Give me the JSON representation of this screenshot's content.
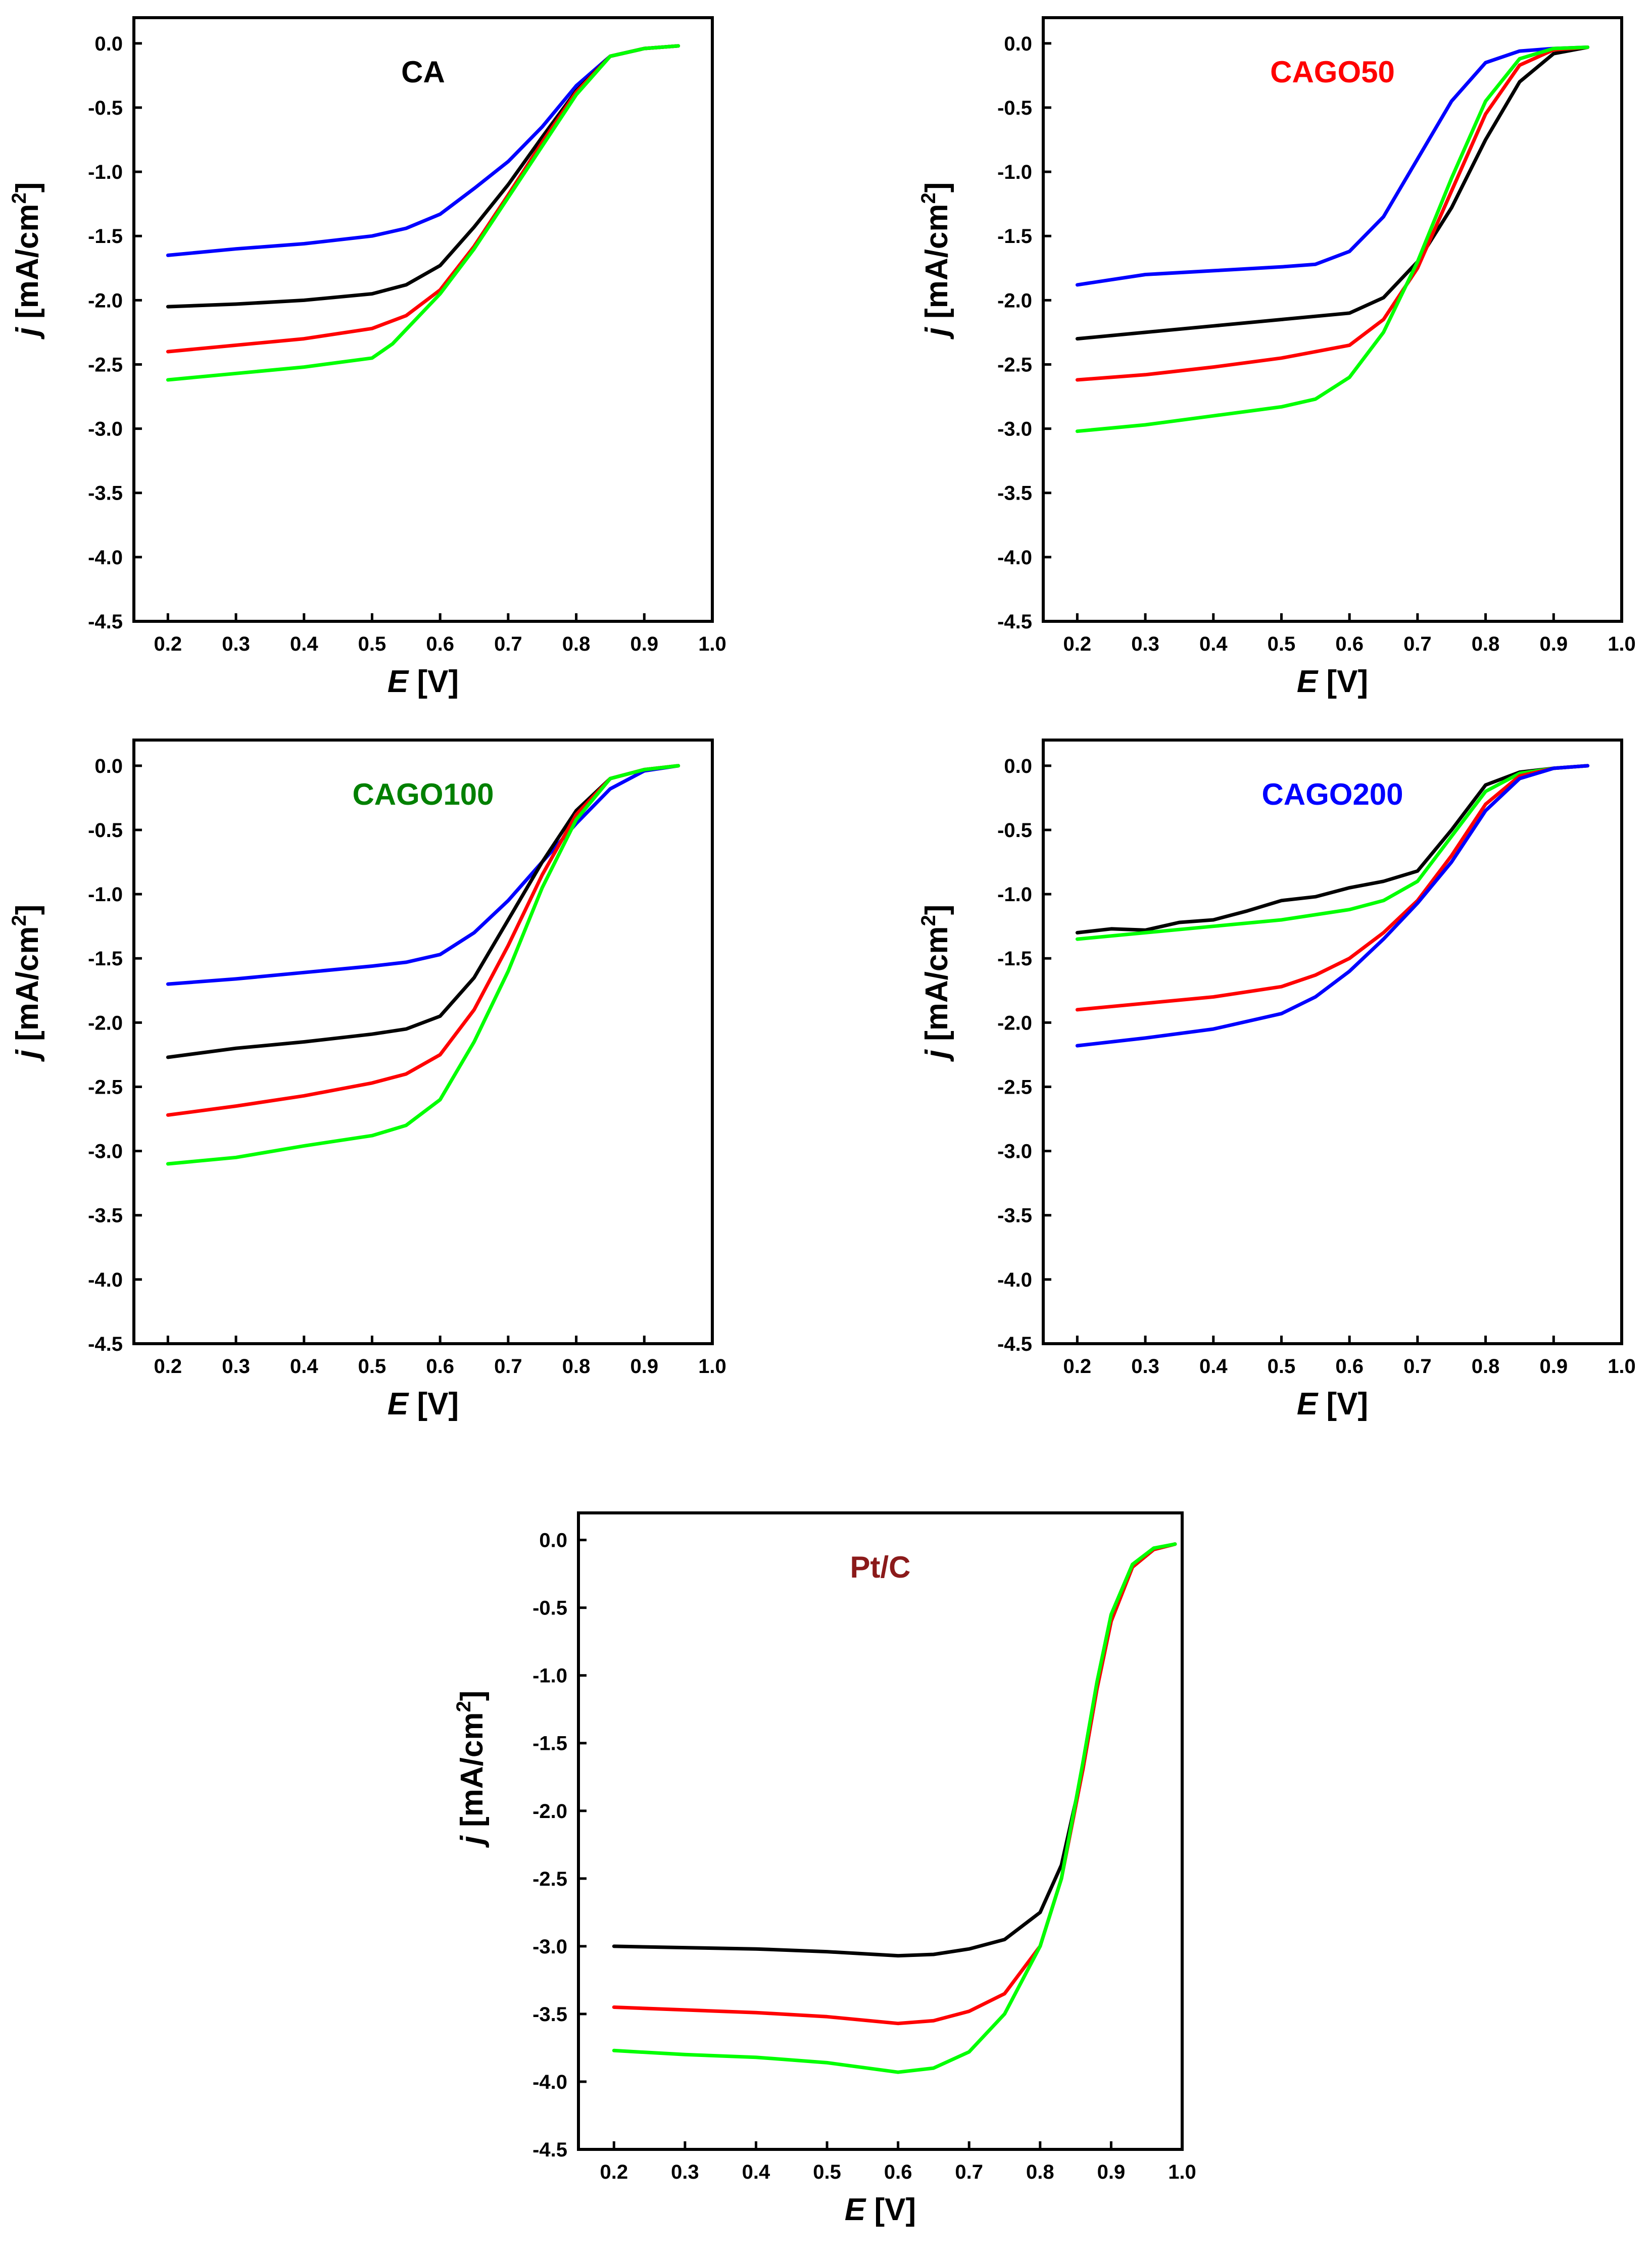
{
  "chart_data": [
    {
      "type": "line",
      "title": "CA",
      "title_color": "#000000",
      "xlabel_italic": "E",
      "xlabel_unit": "[V]",
      "ylabel_italic": "j",
      "ylabel_unit": "[mA/cm",
      "ylabel_sup": "2",
      "ylabel_close": "]",
      "xlim": [
        0.15,
        1.0
      ],
      "ylim": [
        -4.5,
        0.2
      ],
      "xticks": [
        "0.2",
        "0.3",
        "0.4",
        "0.5",
        "0.6",
        "0.7",
        "0.8",
        "0.9",
        "1.0"
      ],
      "yticks": [
        "0.0",
        "-0.5",
        "-1.0",
        "-1.5",
        "-2.0",
        "-2.5",
        "-3.0",
        "-3.5",
        "-4.0",
        "-4.5"
      ],
      "series": [
        {
          "color": "#0000ff",
          "x": [
            0.2,
            0.3,
            0.4,
            0.5,
            0.55,
            0.6,
            0.65,
            0.7,
            0.75,
            0.8,
            0.85,
            0.9,
            0.95
          ],
          "y": [
            -1.65,
            -1.6,
            -1.56,
            -1.5,
            -1.44,
            -1.33,
            -1.13,
            -0.92,
            -0.65,
            -0.33,
            -0.1,
            -0.04,
            -0.02
          ]
        },
        {
          "color": "#000000",
          "x": [
            0.2,
            0.3,
            0.4,
            0.5,
            0.55,
            0.6,
            0.65,
            0.7,
            0.75,
            0.8,
            0.85,
            0.9,
            0.95
          ],
          "y": [
            -2.05,
            -2.03,
            -2.0,
            -1.95,
            -1.88,
            -1.73,
            -1.43,
            -1.1,
            -0.73,
            -0.37,
            -0.1,
            -0.04,
            -0.02
          ]
        },
        {
          "color": "#ff0000",
          "x": [
            0.2,
            0.3,
            0.4,
            0.5,
            0.55,
            0.6,
            0.65,
            0.7,
            0.75,
            0.8,
            0.85,
            0.9,
            0.95
          ],
          "y": [
            -2.4,
            -2.35,
            -2.3,
            -2.22,
            -2.12,
            -1.92,
            -1.58,
            -1.18,
            -0.77,
            -0.38,
            -0.1,
            -0.04,
            -0.02
          ]
        },
        {
          "color": "#00ff00",
          "x": [
            0.2,
            0.3,
            0.4,
            0.5,
            0.53,
            0.6,
            0.65,
            0.7,
            0.75,
            0.8,
            0.85,
            0.9,
            0.95
          ],
          "y": [
            -2.62,
            -2.57,
            -2.52,
            -2.45,
            -2.34,
            -1.95,
            -1.6,
            -1.2,
            -0.8,
            -0.4,
            -0.1,
            -0.04,
            -0.02
          ]
        }
      ]
    },
    {
      "type": "line",
      "title": "CAGO50",
      "title_color": "#ff0000",
      "xlabel_italic": "E",
      "xlabel_unit": "[V]",
      "ylabel_italic": "j",
      "ylabel_unit": "[mA/cm",
      "ylabel_sup": "2",
      "ylabel_close": "]",
      "xlim": [
        0.15,
        1.0
      ],
      "ylim": [
        -4.5,
        0.2
      ],
      "xticks": [
        "0.2",
        "0.3",
        "0.4",
        "0.5",
        "0.6",
        "0.7",
        "0.8",
        "0.9",
        "1.0"
      ],
      "yticks": [
        "0.0",
        "-0.5",
        "-1.0",
        "-1.5",
        "-2.0",
        "-2.5",
        "-3.0",
        "-3.5",
        "-4.0",
        "-4.5"
      ],
      "series": [
        {
          "color": "#0000ff",
          "x": [
            0.2,
            0.3,
            0.4,
            0.5,
            0.55,
            0.6,
            0.65,
            0.7,
            0.75,
            0.8,
            0.85,
            0.9,
            0.95
          ],
          "y": [
            -1.88,
            -1.8,
            -1.77,
            -1.74,
            -1.72,
            -1.62,
            -1.35,
            -0.9,
            -0.45,
            -0.15,
            -0.06,
            -0.04,
            -0.03
          ]
        },
        {
          "color": "#000000",
          "x": [
            0.2,
            0.3,
            0.4,
            0.5,
            0.6,
            0.65,
            0.7,
            0.75,
            0.8,
            0.85,
            0.9,
            0.95
          ],
          "y": [
            -2.3,
            -2.25,
            -2.2,
            -2.15,
            -2.1,
            -1.98,
            -1.7,
            -1.28,
            -0.75,
            -0.3,
            -0.08,
            -0.03
          ]
        },
        {
          "color": "#ff0000",
          "x": [
            0.2,
            0.3,
            0.4,
            0.5,
            0.6,
            0.65,
            0.7,
            0.75,
            0.8,
            0.85,
            0.9,
            0.95
          ],
          "y": [
            -2.62,
            -2.58,
            -2.52,
            -2.45,
            -2.35,
            -2.15,
            -1.75,
            -1.15,
            -0.55,
            -0.17,
            -0.05,
            -0.03
          ]
        },
        {
          "color": "#00ff00",
          "x": [
            0.2,
            0.3,
            0.4,
            0.5,
            0.55,
            0.6,
            0.65,
            0.7,
            0.75,
            0.8,
            0.85,
            0.9,
            0.95
          ],
          "y": [
            -3.02,
            -2.97,
            -2.9,
            -2.83,
            -2.77,
            -2.6,
            -2.25,
            -1.7,
            -1.05,
            -0.45,
            -0.12,
            -0.04,
            -0.03
          ]
        }
      ]
    },
    {
      "type": "line",
      "title": "CAGO100",
      "title_color": "#008000",
      "xlabel_italic": "E",
      "xlabel_unit": "[V]",
      "ylabel_italic": "j",
      "ylabel_unit": "[mA/cm",
      "ylabel_sup": "2",
      "ylabel_close": "]",
      "xlim": [
        0.15,
        1.0
      ],
      "ylim": [
        -4.5,
        0.2
      ],
      "xticks": [
        "0.2",
        "0.3",
        "0.4",
        "0.5",
        "0.6",
        "0.7",
        "0.8",
        "0.9",
        "1.0"
      ],
      "yticks": [
        "0.0",
        "-0.5",
        "-1.0",
        "-1.5",
        "-2.0",
        "-2.5",
        "-3.0",
        "-3.5",
        "-4.0",
        "-4.5"
      ],
      "series": [
        {
          "color": "#0000ff",
          "x": [
            0.2,
            0.3,
            0.4,
            0.5,
            0.55,
            0.6,
            0.65,
            0.7,
            0.75,
            0.8,
            0.85,
            0.9,
            0.95
          ],
          "y": [
            -1.7,
            -1.66,
            -1.61,
            -1.56,
            -1.53,
            -1.47,
            -1.3,
            -1.05,
            -0.75,
            -0.45,
            -0.18,
            -0.04,
            0.0
          ]
        },
        {
          "color": "#000000",
          "x": [
            0.2,
            0.3,
            0.4,
            0.5,
            0.55,
            0.6,
            0.65,
            0.7,
            0.75,
            0.8,
            0.85,
            0.9,
            0.95
          ],
          "y": [
            -2.27,
            -2.2,
            -2.15,
            -2.09,
            -2.05,
            -1.95,
            -1.65,
            -1.2,
            -0.75,
            -0.35,
            -0.1,
            -0.03,
            0.0
          ]
        },
        {
          "color": "#ff0000",
          "x": [
            0.2,
            0.3,
            0.4,
            0.5,
            0.55,
            0.6,
            0.65,
            0.7,
            0.75,
            0.8,
            0.85,
            0.9,
            0.95
          ],
          "y": [
            -2.72,
            -2.65,
            -2.57,
            -2.47,
            -2.4,
            -2.25,
            -1.9,
            -1.4,
            -0.85,
            -0.38,
            -0.1,
            -0.03,
            0.0
          ]
        },
        {
          "color": "#00ff00",
          "x": [
            0.2,
            0.3,
            0.4,
            0.5,
            0.55,
            0.6,
            0.65,
            0.7,
            0.75,
            0.8,
            0.85,
            0.9,
            0.95
          ],
          "y": [
            -3.1,
            -3.05,
            -2.96,
            -2.88,
            -2.8,
            -2.6,
            -2.15,
            -1.6,
            -0.95,
            -0.42,
            -0.1,
            -0.03,
            0.0
          ]
        }
      ]
    },
    {
      "type": "line",
      "title": "CAGO200",
      "title_color": "#0000ff",
      "xlabel_italic": "E",
      "xlabel_unit": "[V]",
      "ylabel_italic": "j",
      "ylabel_unit": "[mA/cm",
      "ylabel_sup": "2",
      "ylabel_close": "]",
      "xlim": [
        0.15,
        1.0
      ],
      "ylim": [
        -4.5,
        0.2
      ],
      "xticks": [
        "0.2",
        "0.3",
        "0.4",
        "0.5",
        "0.6",
        "0.7",
        "0.8",
        "0.9",
        "1.0"
      ],
      "yticks": [
        "0.0",
        "-0.5",
        "-1.0",
        "-1.5",
        "-2.0",
        "-2.5",
        "-3.0",
        "-3.5",
        "-4.0",
        "-4.5"
      ],
      "series": [
        {
          "color": "#000000",
          "x": [
            0.2,
            0.25,
            0.3,
            0.35,
            0.4,
            0.45,
            0.5,
            0.55,
            0.6,
            0.65,
            0.7,
            0.75,
            0.8,
            0.85,
            0.9,
            0.95
          ],
          "y": [
            -1.3,
            -1.27,
            -1.28,
            -1.22,
            -1.2,
            -1.13,
            -1.05,
            -1.02,
            -0.95,
            -0.9,
            -0.82,
            -0.5,
            -0.15,
            -0.05,
            -0.02,
            0.0
          ]
        },
        {
          "color": "#00ff00",
          "x": [
            0.2,
            0.3,
            0.4,
            0.5,
            0.6,
            0.65,
            0.7,
            0.75,
            0.8,
            0.85,
            0.9,
            0.95
          ],
          "y": [
            -1.35,
            -1.3,
            -1.25,
            -1.2,
            -1.12,
            -1.05,
            -0.9,
            -0.55,
            -0.2,
            -0.06,
            -0.02,
            0.0
          ]
        },
        {
          "color": "#ff0000",
          "x": [
            0.2,
            0.3,
            0.4,
            0.5,
            0.55,
            0.6,
            0.65,
            0.7,
            0.75,
            0.8,
            0.85,
            0.9,
            0.95
          ],
          "y": [
            -1.9,
            -1.85,
            -1.8,
            -1.72,
            -1.63,
            -1.5,
            -1.3,
            -1.05,
            -0.7,
            -0.3,
            -0.08,
            -0.02,
            0.0
          ]
        },
        {
          "color": "#0000ff",
          "x": [
            0.2,
            0.3,
            0.4,
            0.5,
            0.55,
            0.6,
            0.65,
            0.7,
            0.75,
            0.8,
            0.85,
            0.9,
            0.95
          ],
          "y": [
            -2.18,
            -2.12,
            -2.05,
            -1.93,
            -1.8,
            -1.6,
            -1.35,
            -1.07,
            -0.75,
            -0.35,
            -0.1,
            -0.02,
            0.0
          ]
        }
      ]
    },
    {
      "type": "line",
      "title": "Pt/C",
      "title_color": "#8b1a1a",
      "xlabel_italic": "E",
      "xlabel_unit": "[V]",
      "ylabel_italic": "j",
      "ylabel_unit": "[mA/cm",
      "ylabel_sup": "2",
      "ylabel_close": "]",
      "xlim": [
        0.15,
        1.0
      ],
      "ylim": [
        -4.5,
        0.2
      ],
      "xticks": [
        "0.2",
        "0.3",
        "0.4",
        "0.5",
        "0.6",
        "0.7",
        "0.8",
        "0.9",
        "1.0"
      ],
      "yticks": [
        "0.0",
        "-0.5",
        "-1.0",
        "-1.5",
        "-2.0",
        "-2.5",
        "-3.0",
        "-3.5",
        "-4.0",
        "-4.5"
      ],
      "series": [
        {
          "color": "#000000",
          "x": [
            0.2,
            0.3,
            0.4,
            0.5,
            0.6,
            0.65,
            0.7,
            0.75,
            0.8,
            0.83,
            0.86,
            0.88,
            0.9,
            0.93,
            0.96,
            0.99
          ],
          "y": [
            -3.0,
            -3.01,
            -3.02,
            -3.04,
            -3.07,
            -3.06,
            -3.02,
            -2.95,
            -2.75,
            -2.4,
            -1.7,
            -1.1,
            -0.6,
            -0.2,
            -0.07,
            -0.03
          ]
        },
        {
          "color": "#ff0000",
          "x": [
            0.2,
            0.3,
            0.4,
            0.5,
            0.6,
            0.65,
            0.7,
            0.75,
            0.8,
            0.83,
            0.86,
            0.88,
            0.9,
            0.93,
            0.96,
            0.99
          ],
          "y": [
            -3.45,
            -3.47,
            -3.49,
            -3.52,
            -3.57,
            -3.55,
            -3.48,
            -3.35,
            -3.0,
            -2.5,
            -1.7,
            -1.1,
            -0.6,
            -0.2,
            -0.07,
            -0.03
          ]
        },
        {
          "color": "#00ff00",
          "x": [
            0.2,
            0.3,
            0.4,
            0.5,
            0.6,
            0.65,
            0.7,
            0.75,
            0.8,
            0.83,
            0.86,
            0.88,
            0.9,
            0.93,
            0.96,
            0.99
          ],
          "y": [
            -3.77,
            -3.8,
            -3.82,
            -3.86,
            -3.93,
            -3.9,
            -3.78,
            -3.5,
            -3.0,
            -2.5,
            -1.65,
            -1.05,
            -0.55,
            -0.18,
            -0.06,
            -0.03
          ]
        }
      ]
    }
  ]
}
